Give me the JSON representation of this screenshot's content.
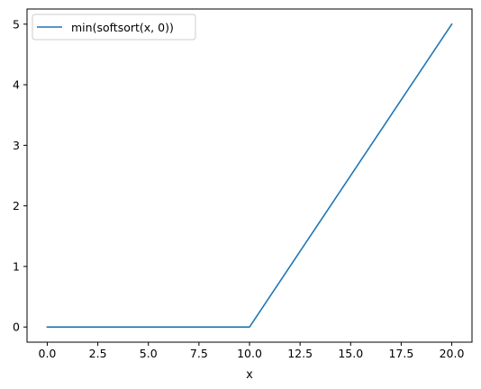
{
  "chart_data": {
    "type": "line",
    "title": "",
    "xlabel": "x",
    "ylabel": "",
    "xlim": [
      -1,
      21
    ],
    "ylim": [
      -0.25,
      5.25
    ],
    "xticks": [
      0.0,
      2.5,
      5.0,
      7.5,
      10.0,
      12.5,
      15.0,
      17.5,
      20.0
    ],
    "xtick_labels": [
      "0.0",
      "2.5",
      "5.0",
      "7.5",
      "10.0",
      "12.5",
      "15.0",
      "17.5",
      "20.0"
    ],
    "yticks": [
      0,
      1,
      2,
      3,
      4,
      5
    ],
    "ytick_labels": [
      "0",
      "1",
      "2",
      "3",
      "4",
      "5"
    ],
    "grid": false,
    "legend_position": "top-left",
    "series": [
      {
        "name": "min(softsort(x, 0))",
        "color": "#1f77b4",
        "x": [
          0,
          10,
          20
        ],
        "y": [
          0,
          0,
          5
        ]
      }
    ]
  }
}
